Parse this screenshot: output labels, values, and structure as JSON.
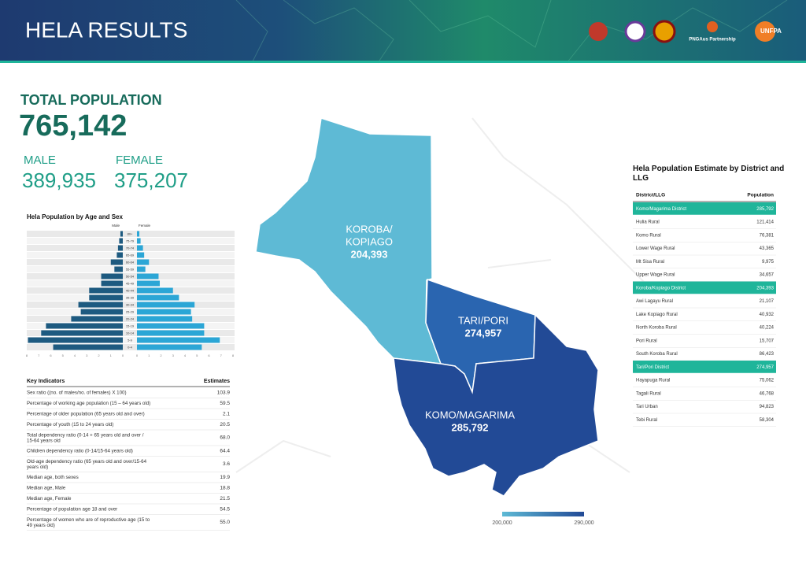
{
  "header": {
    "title": "HELA RESULTS",
    "partner": "PNGAus Partnership",
    "agency": "UNFPA"
  },
  "totals": {
    "total_label": "TOTAL POPULATION",
    "total_value": "765,142",
    "male_label": "MALE",
    "male_value": "389,935",
    "female_label": "FEMALE",
    "female_value": "375,207"
  },
  "pyramid": {
    "type": "bar",
    "title": "Hela Population by Age and Sex",
    "categories": [
      "80+",
      "75-79",
      "70-74",
      "65-69",
      "60-64",
      "55-59",
      "50-54",
      "45-49",
      "40-44",
      "35-39",
      "30-34",
      "25-29",
      "20-24",
      "15-19",
      "10-14",
      "5-9",
      "0-4"
    ],
    "series": [
      {
        "name": "Male",
        "color": "#1d5a80",
        "values": [
          0.2,
          0.3,
          0.4,
          0.5,
          1.0,
          0.7,
          1.8,
          1.8,
          2.8,
          2.8,
          3.7,
          3.5,
          4.3,
          6.4,
          6.8,
          7.9,
          5.8
        ]
      },
      {
        "name": "Female",
        "color": "#2ba6d6",
        "values": [
          0.2,
          0.3,
          0.5,
          0.6,
          1.0,
          0.7,
          1.8,
          1.9,
          3.0,
          3.5,
          4.8,
          4.5,
          4.6,
          5.6,
          5.6,
          6.9,
          5.4
        ]
      }
    ],
    "xlim": [
      0,
      8
    ],
    "xticks": [
      0,
      1,
      2,
      3,
      4,
      5,
      6,
      7,
      8
    ]
  },
  "indicators": {
    "header": [
      "Key Indicators",
      "Estimates"
    ],
    "rows": [
      [
        "Sex ratio ((no. of males/no. of females) X 100)",
        "103.9"
      ],
      [
        "Percentage of working age population (15 – 64 years old)",
        "59.5"
      ],
      [
        "Percentage of older population (65 years old and over)",
        "2.1"
      ],
      [
        "Percentage of youth (15 to 24 years old)",
        "20.5"
      ],
      [
        "Total dependency ratio (0-14 + 65 years old and over / 15-64 years old",
        "68.0"
      ],
      [
        "Children dependency ratio (0-14/15-64 years old)",
        "64.4"
      ],
      [
        "Old-age dependency ratio (65 years old and over/15-64 years old)",
        "3.6"
      ],
      [
        "Median age, both sexes",
        "19.9"
      ],
      [
        "Median age, Male",
        "18.8"
      ],
      [
        "Median age, Female",
        "21.5"
      ],
      [
        "Percentage of population age 18 and over",
        "54.5"
      ],
      [
        "Percentage of women who are of reproductive age (15 to 49 years old)",
        "55.0"
      ]
    ]
  },
  "map": {
    "regions": [
      {
        "name": "KOROBA/",
        "name2": "KOPIAGO",
        "value": "204,393"
      },
      {
        "name": "TARI/PORI",
        "value": "274,957"
      },
      {
        "name": "KOMO/MAGARIMA",
        "value": "285,792"
      }
    ],
    "legend": [
      "200,000",
      "290,000"
    ]
  },
  "districts": {
    "title": "Hela Population Estimate by District and LLG",
    "header": [
      "District/LLG",
      "Population"
    ],
    "rows": [
      [
        "Komo/Magarima District",
        "285,792"
      ],
      [
        "Hulia Rural",
        "121,414"
      ],
      [
        "Komo Rural",
        "76,381"
      ],
      [
        "Lower Wage Rural",
        "43,365"
      ],
      [
        "Mt Sisa Rural",
        "9,975"
      ],
      [
        "Upper Wage Rural",
        "34,657"
      ],
      [
        "Koroba/Kopiago District",
        "204,393"
      ],
      [
        "Awi Lagayu Rural",
        "21,107"
      ],
      [
        "Lake Kopiago Rural",
        "40,932"
      ],
      [
        "North Koroba Rural",
        "40,224"
      ],
      [
        "Pori Rural",
        "15,707"
      ],
      [
        "South Koroba Rural",
        "86,423"
      ],
      [
        "Tari/Pori District",
        "274,957"
      ],
      [
        "Hayapuga Rural",
        "75,062"
      ],
      [
        "Tagali Rural",
        "46,768"
      ],
      [
        "Tari Urban",
        "94,823"
      ],
      [
        "Tebi Rural",
        "58,304"
      ]
    ],
    "district_rows": [
      0,
      6,
      12
    ]
  }
}
